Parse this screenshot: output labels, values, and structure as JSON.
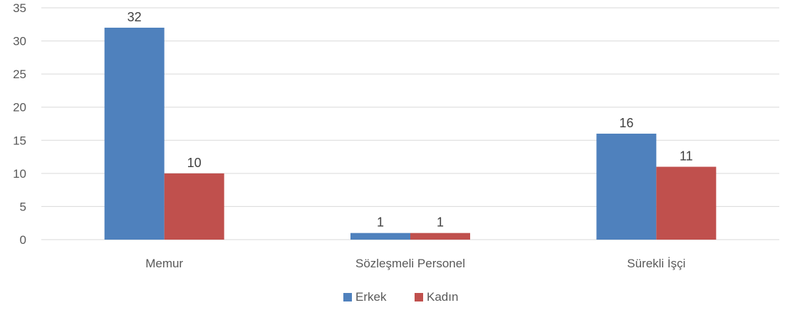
{
  "chart_data": {
    "type": "bar",
    "categories": [
      "Memur",
      "Sözleşmeli Personel",
      "Sürekli İşçi"
    ],
    "series": [
      {
        "name": "Erkek",
        "values": [
          32,
          1,
          16
        ],
        "color": "#4F81BD"
      },
      {
        "name": "Kadın",
        "values": [
          10,
          1,
          11
        ],
        "color": "#C0504D"
      }
    ],
    "yticks": [
      0,
      5,
      10,
      15,
      20,
      25,
      30,
      35
    ],
    "ylim": [
      0,
      35
    ],
    "grid": true,
    "legend_position": "bottom",
    "data_labels": true,
    "gridline_color": "#D9D9D9"
  }
}
